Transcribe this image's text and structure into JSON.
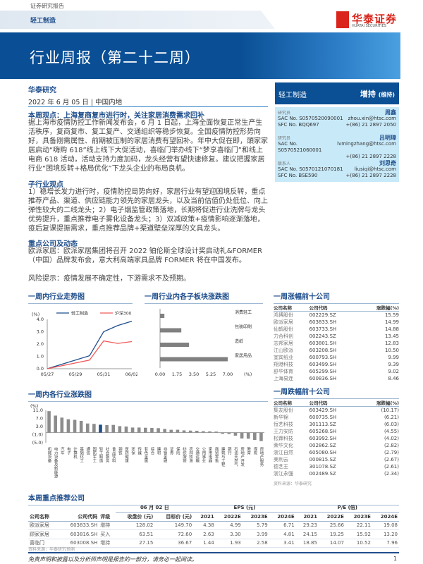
{
  "header": {
    "tag": "证券研究报告",
    "sector": "轻工制造",
    "logo_cn": "华泰证券",
    "logo_en": "HUATAI SECURITIES",
    "title": "行业周报（第二十二周）"
  },
  "meta": {
    "org": "华泰研究",
    "date": "2022 年 6 月 05 日 | 中国内地"
  },
  "sections": {
    "view_title": "本周观点：上海复商复市进行时，关注家居消费需求回补",
    "view_body": "据上海市疫情防控工作新闻发布会，6 月 1 日起，上海全面恢复正常生产生活秩序，复商复市、复工复产、交通组织等稳步恢复。全国疫情防控形势向好，具备刚需属性、前期被压制的家居消费有望回补。年中大促在即，頭家家居启动“嗨购 618”线上线下大促活动，喜临门举办线下“梦享喜临门”和线上电商 618 活动，活动支持力度加码，龙头经营有望快速修复。建议把握家居行业“困境反转+格局优化”下龙头企业的布局良机。",
    "sub_title": "子行业观点",
    "sub_body": "1）稳增长发力进行时，疫情防控局势向好，家居行业有望迎困境反转，重点推荐产品、渠道、供应链能力领先的家居龙头，以及当前估值仍处低位、向上弹性较大的二线龙头；2）电子烟监管政策落地，长期将促进行业洗牌与龙头优势提升，重点推荐电子雾化设备龙头；3）双减政策+疫情影响逐渐落地，疫后复课提振需求，重点推荐品牌+渠道壁垒深厚的文具龙头。",
    "company_title": "重点公司及动态",
    "company_body": "欧派家居：欧派家居集团将召开 2022 铂伦斯全球设计奖启动礼&FORMER（中国）品牌发布会，意大利高端家具品牌 FORMER 将在中国发布。",
    "risk": "风险提示：疫情发展不确定性，下游需求不及预期。"
  },
  "rating": {
    "sector": "轻工制造",
    "rating": "增持",
    "note": "(维持)"
  },
  "analysts": [
    {
      "role": "研究员",
      "name": "周鑫",
      "lines": [
        [
          "SAC No. S0570520090001",
          "zhou.xin@htsc.com"
        ],
        [
          "SFC No. BQQ697",
          "+(86) 21 2897 2050"
        ]
      ]
    },
    {
      "role": "研究员",
      "name": "吕明璋",
      "lines": [
        [
          "SAC No. S0570521060001",
          "lvmingzhang@htsc.com"
        ],
        [
          "",
          "+(86) 21 2897 2228"
        ]
      ]
    },
    {
      "role": "联系人",
      "name": "刘思奇",
      "lines": [
        [
          "SAC No. S0570121070181",
          "liusiqi@htsc.com"
        ],
        [
          "SFC No. BSE590",
          "+(86) 21 2897 2228"
        ]
      ]
    }
  ],
  "chart_titles": {
    "trend": "一周内行业走势图",
    "sub": "一周行业内各子板块涨跌图",
    "industry": "一周内各行业涨跌图",
    "gainers": "一周涨幅前十公司",
    "losers": "一周跌幅前十公司",
    "recommend": "本周重点推荐公司"
  },
  "chart_data": [
    {
      "type": "line",
      "unit": "(%)",
      "x_ticks": [
        "05/27",
        "05/29",
        "05/31",
        "06/02"
      ],
      "x": [
        "05/27",
        "05/30",
        "05/31",
        "06/01",
        "06/02"
      ],
      "ylim": [
        0,
        4
      ],
      "y_ticks": [
        "0.0",
        "1.0",
        "2.0",
        "3.0",
        "4.0"
      ],
      "legend": "top",
      "series": [
        {
          "name": "轻工制造",
          "color": "#1f4e8c",
          "values": [
            0,
            1.05,
            3.0,
            3.5,
            3.85
          ]
        },
        {
          "name": "沪深300",
          "color": "#f05a5a",
          "values": [
            0,
            0.7,
            2.25,
            2.05,
            2.2
          ]
        }
      ]
    },
    {
      "type": "bar",
      "orientation": "horizontal",
      "unit": "(%)",
      "categories": [
        "消费轻工",
        "包装印刷",
        "造纸",
        "家居用品"
      ],
      "values": [
        0.45,
        2.2,
        3.0,
        7.0
      ],
      "xlim": [
        0,
        7
      ],
      "x_ticks": [
        "0.00",
        "1.75",
        "3.50",
        "5.25",
        "7.00"
      ],
      "color": "#808080"
    },
    {
      "type": "bar",
      "unit": "(%)",
      "ylim": [
        -5,
        11
      ],
      "y_ticks": [
        "11.0",
        "7.0",
        "3.0",
        "(1.0)",
        "(5.0)"
      ],
      "highlight": "轻工制造",
      "highlight_color": "#1f4e8c",
      "color": "#8c8c8c",
      "categories": [
        "机械设备",
        "电力设备及新能源",
        "汽车",
        "电子",
        "计算机",
        "基础化工",
        "通信",
        "国防军工",
        "轻工制造",
        "社会服务",
        "食品饮料",
        "钢铁",
        "医药健康",
        "环保",
        "传媒",
        "有色金属",
        "综合",
        "建材",
        "非银金融",
        "证券",
        "保险",
        "纺织服装",
        "农林牧渔",
        "交通运输",
        "公用事业",
        "家用电器",
        "商贸零售",
        "建筑与工程",
        "银行",
        "石油天然气",
        "房地产开发",
        "教育",
        "煤炭",
        "房地产服务"
      ],
      "values": [
        10.6,
        8.4,
        7.4,
        6.6,
        6.3,
        5.8,
        4.5,
        4.3,
        3.9,
        3.7,
        3.8,
        3.2,
        3.0,
        2.5,
        2.5,
        2.4,
        2.3,
        2.2,
        1.8,
        1.4,
        1.4,
        1.1,
        1.0,
        0.9,
        0.7,
        0.6,
        0.5,
        -0.6,
        -0.7,
        -1.5,
        -2.9,
        -3.0,
        -3.6,
        -4.2
      ]
    }
  ],
  "gainers": {
    "headers": [
      "公司名称",
      "公司代码",
      "涨跌幅(%)"
    ],
    "rows": [
      [
        "鸿博股份",
        "002229.SZ",
        "15.59"
      ],
      [
        "欧派家居",
        "603833.SH",
        "14.99"
      ],
      [
        "仙鹤股份",
        "603733.SH",
        "14.88"
      ],
      [
        "力合科创",
        "002243.SZ",
        "13.45"
      ],
      [
        "志邦家居",
        "603801.SH",
        "12.83"
      ],
      [
        "江山欧派",
        "603208.SH",
        "10.50"
      ],
      [
        "宜宾纸业",
        "600793.SH",
        "9.99"
      ],
      [
        "翔港科技",
        "603499.SH",
        "9.39"
      ],
      [
        "舒华体育",
        "605299.SH",
        "9.02"
      ],
      [
        "上海易连",
        "600836.SH",
        "8.46"
      ]
    ]
  },
  "losers": {
    "headers": [
      "公司名称",
      "公司代码",
      "涨跌幅(%)"
    ],
    "rows": [
      [
        "集友股份",
        "603429.SH",
        "(10.17)"
      ],
      [
        "新华锦",
        "600735.SH",
        "(6.21)"
      ],
      [
        "恒艺科技",
        "301113.SZ",
        "(6.03)"
      ],
      [
        "王力安防",
        "605268.SH",
        "(4.55)"
      ],
      [
        "松霖科技",
        "603992.SH",
        "(4.02)"
      ],
      [
        "荣华文化",
        "002862.SZ",
        "(2.82)"
      ],
      [
        "浙江自然",
        "605080.SH",
        "(2.79)"
      ],
      [
        "美利云",
        "000815.SZ",
        "(2.67)"
      ],
      [
        "德艺王",
        "301078.SZ",
        "(2.61)"
      ],
      [
        "浙江永强",
        "002489.SZ",
        "(2.34)"
      ]
    ],
    "source": "资料来源：华泰研究"
  },
  "recommend": {
    "date_group": "06 月 02 日",
    "eps_group": "EPS (元)",
    "pe_group": "P/E (倍)",
    "headers": [
      "公司名称",
      "公司代码",
      "评级",
      "收盘价 (元)",
      "目标价 (元)",
      "2021",
      "2022E",
      "2023E",
      "2024E",
      "2021",
      "2022E",
      "2023E",
      "2024E"
    ],
    "rows": [
      [
        "欧派家居",
        "603833.SH",
        "增持",
        "128.02",
        "149.70",
        "4.38",
        "4.99",
        "5.79",
        "6.71",
        "29.23",
        "25.66",
        "22.11",
        "19.08"
      ],
      [
        "顾家家居",
        "603816.SH",
        "买入",
        "63.51",
        "72.60",
        "2.63",
        "3.30",
        "3.99",
        "4.81",
        "24.15",
        "19.25",
        "15.92",
        "13.20"
      ],
      [
        "喜临门",
        "603008.SH",
        "增持",
        "27.15",
        "36.67",
        "1.44",
        "1.93",
        "2.58",
        "3.41",
        "18.85",
        "14.07",
        "10.52",
        "7.96"
      ]
    ],
    "source": "资料来源：华泰研究预测"
  },
  "footer": {
    "disclaimer": "免责声明和披露以及分析师声明是报告的一部分，请务必一起阅读。",
    "page": "1"
  }
}
